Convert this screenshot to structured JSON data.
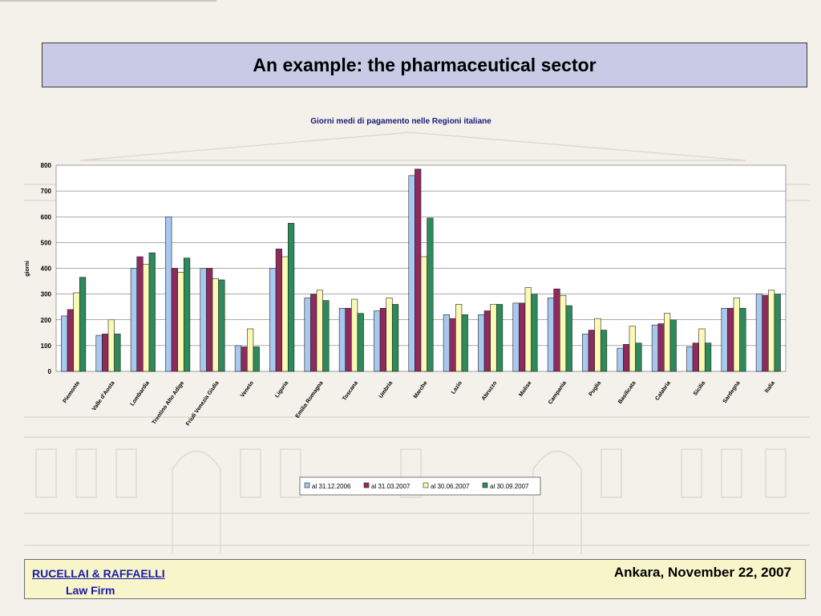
{
  "slide": {
    "title": "An example: the pharmaceutical sector"
  },
  "footer": {
    "firm_name": "RUCELLAI & RAFFAELLI",
    "firm_sub": "Law Firm",
    "event": "Ankara, November 22, 2007"
  },
  "colors": {
    "title_bg": "#c9cbe6",
    "footer_bg": "#f7f5c9",
    "firm_text": "#1a1aa8"
  },
  "chart_data": {
    "type": "bar",
    "title": "Giorni medi di pagamento nelle Regioni italiane",
    "ylabel": "giorni",
    "xlabel": "",
    "ylim": [
      0,
      800
    ],
    "yticks": [
      0,
      100,
      200,
      300,
      400,
      500,
      600,
      700,
      800
    ],
    "grid": true,
    "legend_position": "bottom",
    "categories": [
      "Piemonte",
      "Valle d'Aosta",
      "Lombardia",
      "Trentino Alto Adige",
      "Friuli Venezia Giulia",
      "Veneto",
      "Liguria",
      "Emilia Romagna",
      "Toscana",
      "Umbria",
      "Marche",
      "Lazio",
      "Abruzzo",
      "Molise",
      "Campania",
      "Puglia",
      "Basilicata",
      "Calabria",
      "Sicilia",
      "Sardegna",
      "Italia"
    ],
    "series": [
      {
        "name": "al 31.12.2006",
        "color": "#a8c8f0",
        "values": [
          215,
          140,
          400,
          600,
          400,
          100,
          400,
          285,
          245,
          235,
          760,
          220,
          220,
          265,
          285,
          145,
          90,
          180,
          95,
          245,
          300
        ]
      },
      {
        "name": "al 31.03.2007",
        "color": "#8e2a5c",
        "values": [
          240,
          145,
          445,
          400,
          400,
          95,
          475,
          300,
          245,
          245,
          785,
          205,
          235,
          265,
          320,
          160,
          105,
          185,
          110,
          245,
          295
        ]
      },
      {
        "name": "al 30.06.2007",
        "color": "#fafab4",
        "values": [
          305,
          200,
          415,
          385,
          360,
          165,
          445,
          315,
          280,
          285,
          445,
          260,
          260,
          325,
          295,
          205,
          175,
          225,
          165,
          285,
          315
        ]
      },
      {
        "name": "al 30.09.2007",
        "color": "#2e8a5a",
        "values": [
          365,
          145,
          460,
          440,
          355,
          95,
          575,
          275,
          225,
          260,
          595,
          220,
          260,
          300,
          255,
          160,
          110,
          200,
          110,
          245,
          300
        ]
      }
    ]
  }
}
